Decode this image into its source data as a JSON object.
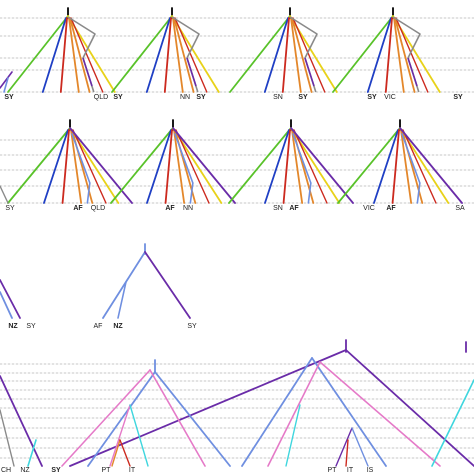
{
  "colors": {
    "purple": "#6a2ca8",
    "blue": "#1f3fc4",
    "green": "#59c22a",
    "yellow": "#e8d21a",
    "orange": "#e3872b",
    "red": "#cc2a1f",
    "gray": "#8a8a8a",
    "lightblue": "#6f8fe0",
    "cyan": "#3fd6de",
    "pink": "#e57ac8",
    "black": "#000000",
    "grid": "#b5b5b5"
  },
  "panels": {
    "row1": [
      {
        "labels": [
          {
            "text": "SY",
            "bold": true
          },
          {
            "text": "QLD",
            "bold": false
          },
          {
            "text": "SY",
            "bold": true
          }
        ]
      },
      {
        "labels": [
          {
            "text": "NN",
            "bold": false
          },
          {
            "text": "SY",
            "bold": true
          }
        ]
      },
      {
        "labels": [
          {
            "text": "SN",
            "bold": false
          },
          {
            "text": "SY",
            "bold": true
          }
        ]
      },
      {
        "labels": [
          {
            "text": "SY",
            "bold": true
          },
          {
            "text": "VIC",
            "bold": false
          },
          {
            "text": "SY",
            "bold": true
          }
        ]
      }
    ],
    "row2": [
      {
        "labels": [
          {
            "text": "SY",
            "bold": false
          },
          {
            "text": "AF",
            "bold": true
          },
          {
            "text": "QLD",
            "bold": false
          }
        ]
      },
      {
        "labels": [
          {
            "text": "AF",
            "bold": true
          },
          {
            "text": "NN",
            "bold": false
          }
        ]
      },
      {
        "labels": [
          {
            "text": "SN",
            "bold": false
          },
          {
            "text": "AF",
            "bold": true
          }
        ]
      },
      {
        "labels": [
          {
            "text": "VIC",
            "bold": false
          },
          {
            "text": "AF",
            "bold": true
          },
          {
            "text": "SA",
            "bold": false
          }
        ]
      }
    ],
    "row3": [
      {
        "labels": [
          {
            "text": "NZ",
            "bold": true
          },
          {
            "text": "SY",
            "bold": false
          }
        ]
      },
      {
        "labels": [
          {
            "text": "AF",
            "bold": false
          },
          {
            "text": "NZ",
            "bold": true
          },
          {
            "text": "SY",
            "bold": false
          }
        ]
      }
    ],
    "row4": [
      {
        "labels": [
          {
            "text": "CH",
            "bold": false
          },
          {
            "text": "NZ",
            "bold": false
          },
          {
            "text": "SY",
            "bold": true
          },
          {
            "text": "PT",
            "bold": false
          },
          {
            "text": "IT",
            "bold": false
          },
          {
            "text": "PT",
            "bold": false
          },
          {
            "text": "IT",
            "bold": false
          },
          {
            "text": "IS",
            "bold": false
          }
        ]
      }
    ]
  }
}
